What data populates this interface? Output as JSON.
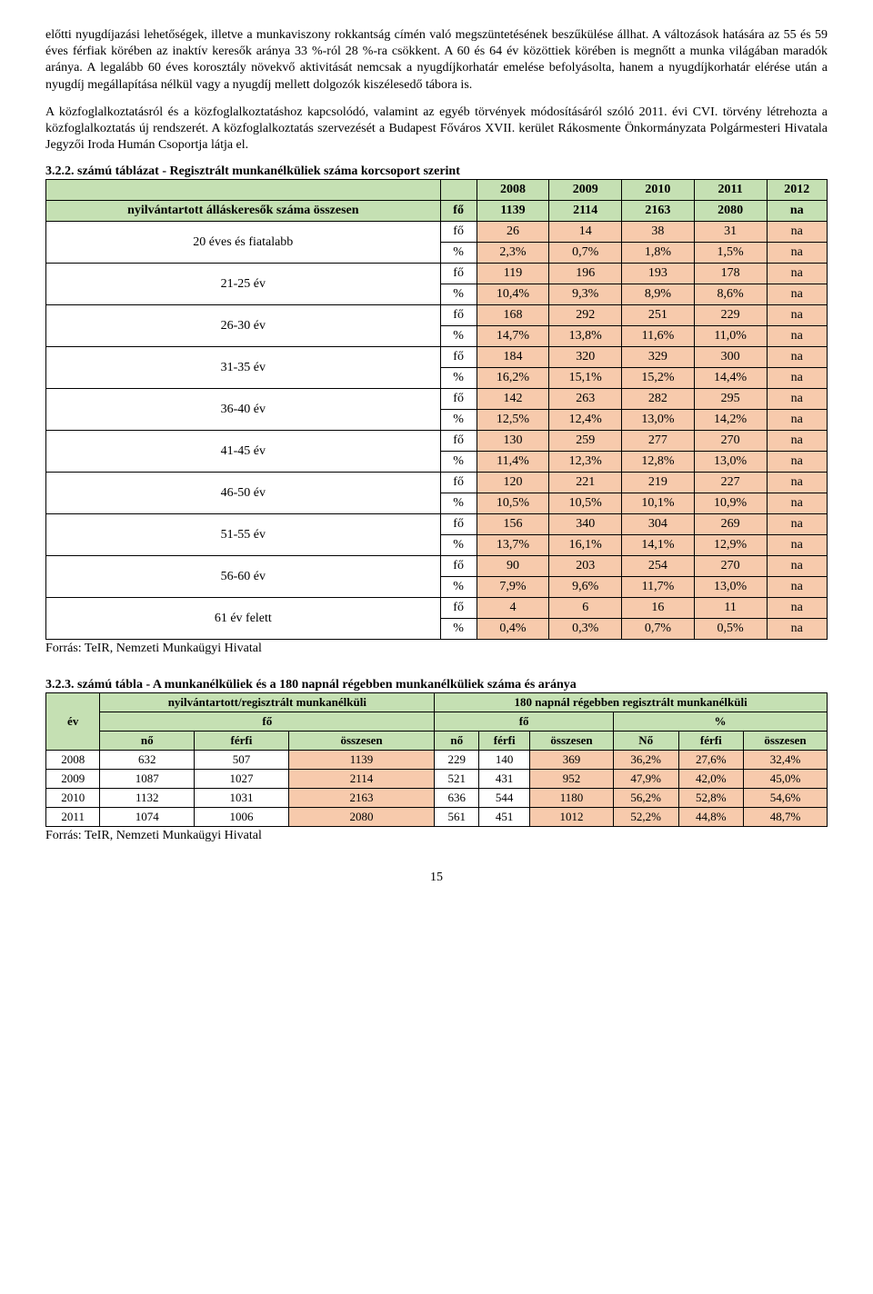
{
  "paragraphs": {
    "p1": "előtti nyugdíjazási lehetőségek, illetve a munkaviszony rokkantság címén való megszüntetésének beszűkülése állhat. A változások hatására az 55 és 59 éves férfiak körében az inaktív keresők aránya 33 %-ról 28 %-ra csökkent. A 60 és 64 év közöttiek körében is megnőtt a munka világában maradók aránya. A legalább 60 éves korosztály növekvő aktivitását nemcsak a nyugdíjkorhatár emelése befolyásolta, hanem a nyugdíjkorhatár elérése után a nyugdíj megállapítása nélkül vagy a nyugdíj mellett dolgozók kiszélesedő tábora is.",
    "p2": "A közfoglalkoztatásról és a közfoglalkoztatáshoz kapcsolódó, valamint az egyéb törvények módosításáról szóló 2011. évi CVI. törvény létrehozta a közfoglalkoztatás új rendszerét. A közfoglalkoztatás szervezését a Budapest Főváros XVII. kerület Rákosmente Önkormányzata Polgármesteri Hivatala Jegyzői Iroda Humán Csoportja látja el."
  },
  "table1": {
    "title": "3.2.2. számú táblázat - Regisztrált munkanélküliek száma korcsoport szerint",
    "year_headers": [
      "2008",
      "2009",
      "2010",
      "2011",
      "2012"
    ],
    "total_row_label": "nyilvántartott álláskeresők száma összesen",
    "total_unit": "fő",
    "total_values": [
      "1139",
      "2114",
      "2163",
      "2080",
      "na"
    ],
    "age_groups": [
      {
        "label": "20 éves és fiatalabb",
        "fo": [
          "26",
          "14",
          "38",
          "31",
          "na"
        ],
        "pct": [
          "2,3%",
          "0,7%",
          "1,8%",
          "1,5%",
          "na"
        ]
      },
      {
        "label": "21-25 év",
        "fo": [
          "119",
          "196",
          "193",
          "178",
          "na"
        ],
        "pct": [
          "10,4%",
          "9,3%",
          "8,9%",
          "8,6%",
          "na"
        ]
      },
      {
        "label": "26-30 év",
        "fo": [
          "168",
          "292",
          "251",
          "229",
          "na"
        ],
        "pct": [
          "14,7%",
          "13,8%",
          "11,6%",
          "11,0%",
          "na"
        ]
      },
      {
        "label": "31-35 év",
        "fo": [
          "184",
          "320",
          "329",
          "300",
          "na"
        ],
        "pct": [
          "16,2%",
          "15,1%",
          "15,2%",
          "14,4%",
          "na"
        ]
      },
      {
        "label": "36-40 év",
        "fo": [
          "142",
          "263",
          "282",
          "295",
          "na"
        ],
        "pct": [
          "12,5%",
          "12,4%",
          "13,0%",
          "14,2%",
          "na"
        ]
      },
      {
        "label": "41-45 év",
        "fo": [
          "130",
          "259",
          "277",
          "270",
          "na"
        ],
        "pct": [
          "11,4%",
          "12,3%",
          "12,8%",
          "13,0%",
          "na"
        ]
      },
      {
        "label": "46-50 év",
        "fo": [
          "120",
          "221",
          "219",
          "227",
          "na"
        ],
        "pct": [
          "10,5%",
          "10,5%",
          "10,1%",
          "10,9%",
          "na"
        ]
      },
      {
        "label": "51-55 év",
        "fo": [
          "156",
          "340",
          "304",
          "269",
          "na"
        ],
        "pct": [
          "13,7%",
          "16,1%",
          "14,1%",
          "12,9%",
          "na"
        ]
      },
      {
        "label": "56-60 év",
        "fo": [
          "90",
          "203",
          "254",
          "270",
          "na"
        ],
        "pct": [
          "7,9%",
          "9,6%",
          "11,7%",
          "13,0%",
          "na"
        ]
      },
      {
        "label": "61 év felett",
        "fo": [
          "4",
          "6",
          "16",
          "11",
          "na"
        ],
        "pct": [
          "0,4%",
          "0,3%",
          "0,7%",
          "0,5%",
          "na"
        ]
      }
    ],
    "unit_fo": "fő",
    "unit_pct": "%",
    "source": "Forrás: TeIR, Nemzeti Munkaügyi Hivatal"
  },
  "table2": {
    "title": "3.2.3. számú tábla - A munkanélküliek és a 180 napnál régebben munkanélküliek száma és aránya",
    "h_ev": "év",
    "h_reg": "nyilvántartott/regisztrált munkanélküli",
    "h_180": "180 napnál régebben regisztrált munkanélküli",
    "h_fo": "fő",
    "h_pct": "%",
    "h_no": "nő",
    "h_ferfi": "férfi",
    "h_ossz": "összesen",
    "h_No": "Nő",
    "rows": [
      {
        "ev": "2008",
        "r": [
          "632",
          "507",
          "1139",
          "229",
          "140",
          "369",
          "36,2%",
          "27,6%",
          "32,4%"
        ]
      },
      {
        "ev": "2009",
        "r": [
          "1087",
          "1027",
          "2114",
          "521",
          "431",
          "952",
          "47,9%",
          "42,0%",
          "45,0%"
        ]
      },
      {
        "ev": "2010",
        "r": [
          "1132",
          "1031",
          "2163",
          "636",
          "544",
          "1180",
          "56,2%",
          "52,8%",
          "54,6%"
        ]
      },
      {
        "ev": "2011",
        "r": [
          "1074",
          "1006",
          "2080",
          "561",
          "451",
          "1012",
          "52,2%",
          "44,8%",
          "48,7%"
        ]
      }
    ],
    "source": "Forrás: TeIR, Nemzeti Munkaügyi Hivatal"
  },
  "page_number": "15"
}
